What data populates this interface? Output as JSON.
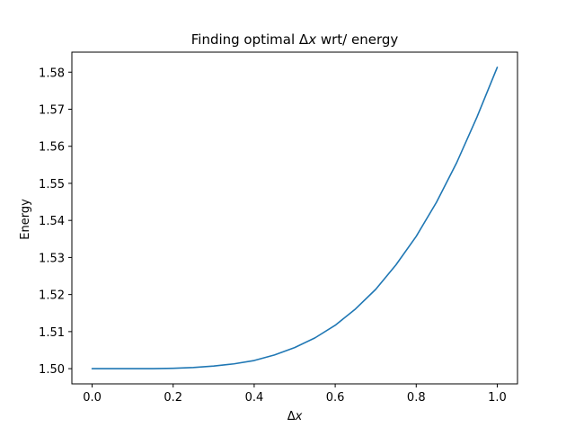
{
  "chart_data": {
    "type": "line",
    "title": "Finding optimal Δx wrt/ energy",
    "title_parts": {
      "before": "Finding optimal ",
      "delta": "Δ",
      "var": "x",
      "after": " wrt/ energy"
    },
    "xlabel": "Δx",
    "xlabel_parts": {
      "delta": "Δ",
      "var": "x"
    },
    "ylabel": "Energy",
    "xlim": [
      -0.05,
      1.05
    ],
    "ylim": [
      1.4959,
      1.5854
    ],
    "xticks": [
      0.0,
      0.2,
      0.4,
      0.6,
      0.8,
      1.0
    ],
    "xtick_labels": [
      "0.0",
      "0.2",
      "0.4",
      "0.6",
      "0.8",
      "1.0"
    ],
    "yticks": [
      1.5,
      1.51,
      1.52,
      1.53,
      1.54,
      1.55,
      1.56,
      1.57,
      1.58
    ],
    "ytick_labels": [
      "1.50",
      "1.51",
      "1.52",
      "1.53",
      "1.54",
      "1.55",
      "1.56",
      "1.57",
      "1.58"
    ],
    "grid": false,
    "legend": "none",
    "colors": {
      "line": "#1f77b4",
      "axes": "#000000",
      "background": "#ffffff"
    },
    "series": [
      {
        "x": [
          0.0,
          0.05,
          0.1,
          0.15,
          0.2,
          0.25,
          0.3,
          0.35,
          0.4,
          0.45,
          0.5,
          0.55,
          0.6,
          0.65,
          0.7,
          0.75,
          0.8,
          0.85,
          0.9,
          0.95,
          1.0
        ],
        "values": [
          1.5,
          1.5,
          1.5,
          1.5,
          1.5001,
          1.5003,
          1.5007,
          1.5013,
          1.5022,
          1.5037,
          1.5057,
          1.5083,
          1.5117,
          1.5161,
          1.5214,
          1.528,
          1.5357,
          1.5449,
          1.5556,
          1.5679,
          1.5813
        ]
      }
    ]
  }
}
